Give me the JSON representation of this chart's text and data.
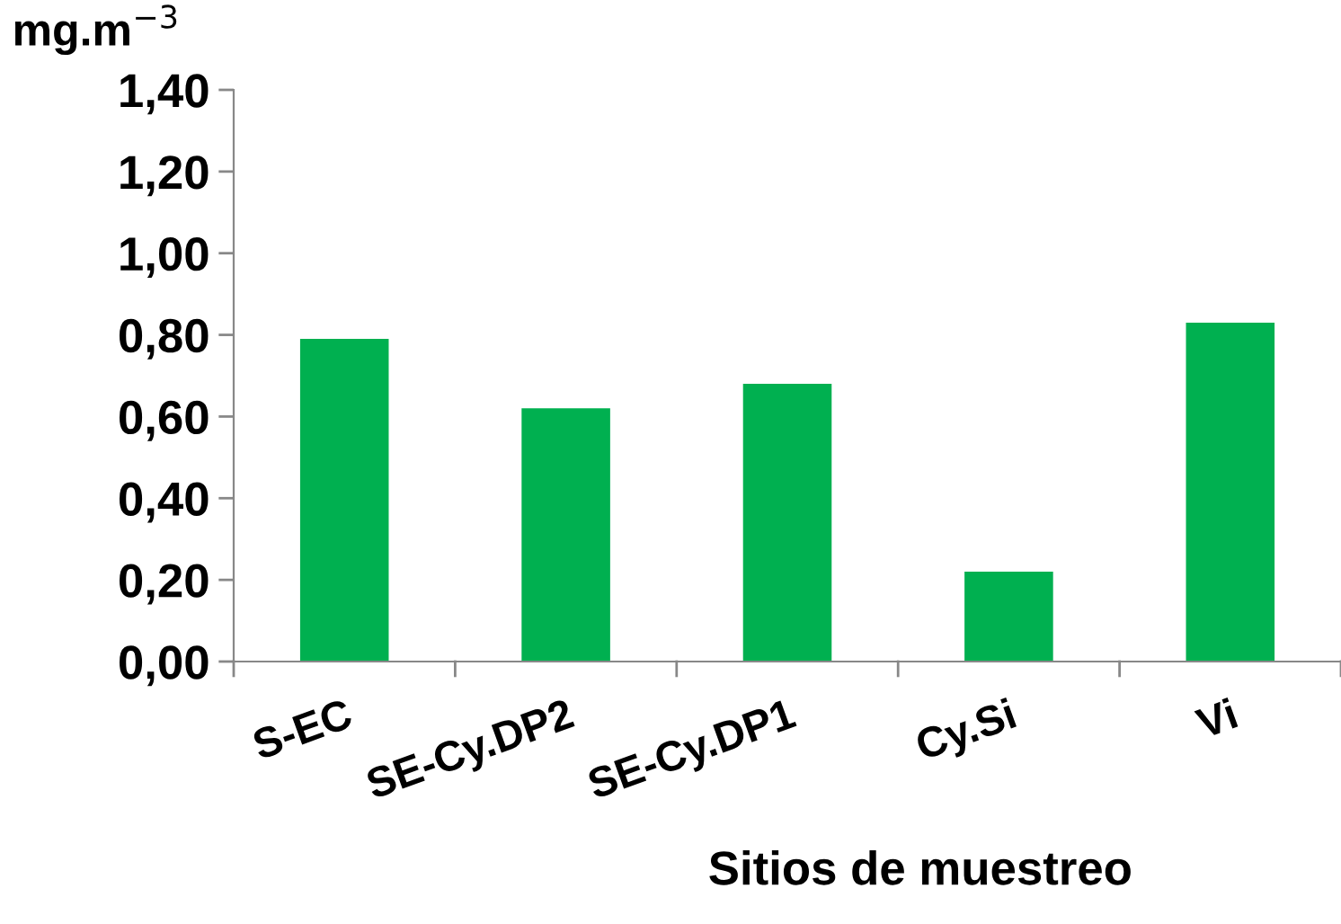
{
  "chart_data": {
    "type": "bar",
    "ylabel": "mg.m$^{−3}$",
    "xlabel": "Sitios de muestreo",
    "categories": [
      "S-EC",
      "SE-Cy.DP2",
      "SE-Cy.DP1",
      "Cy.Si",
      "Vi"
    ],
    "values": [
      0.79,
      0.62,
      0.68,
      0.22,
      0.83
    ],
    "color": "#00b050",
    "ylim": [
      0,
      1.4
    ],
    "yticks": [
      {
        "value": 0,
        "label": "0,00"
      },
      {
        "value": 0.2,
        "label": "0,20"
      },
      {
        "value": 0.4,
        "label": "0,40"
      },
      {
        "value": 0.6,
        "label": "0,60"
      },
      {
        "value": 0.8,
        "label": "0,80"
      },
      {
        "value": 1.0,
        "label": "1,00"
      },
      {
        "value": 1.2,
        "label": "1,20"
      },
      {
        "value": 1.4,
        "label": "1,40"
      }
    ],
    "grid": false,
    "legend": false
  }
}
